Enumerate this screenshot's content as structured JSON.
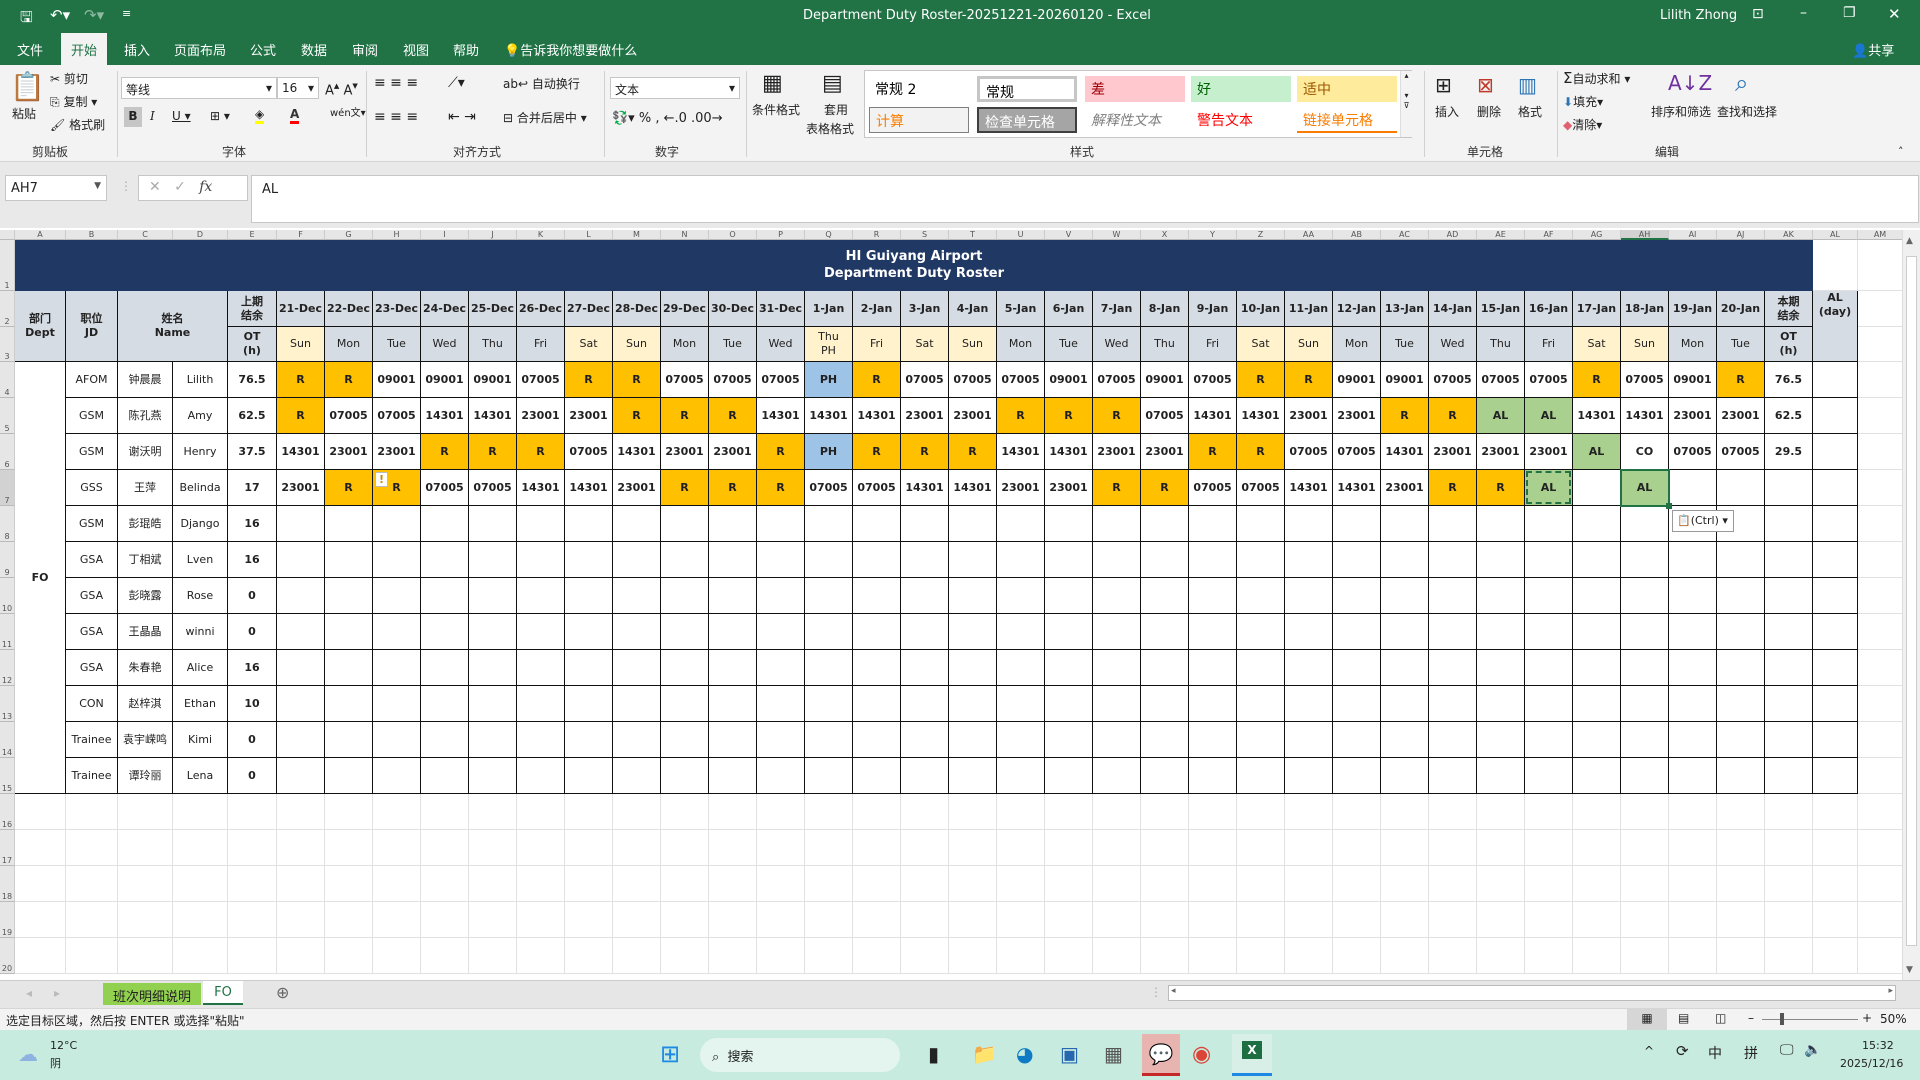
{
  "window": {
    "title": "Department Duty Roster-20251221-20260120  -  Excel",
    "user": "Lilith Zhong",
    "share": "共享"
  },
  "menu_tabs": [
    "文件",
    "开始",
    "插入",
    "页面布局",
    "公式",
    "数据",
    "审阅",
    "视图",
    "帮助"
  ],
  "tell_me": "告诉我你想要做什么",
  "ribbon": {
    "clipboard": {
      "paste": "粘贴",
      "cut": "剪切",
      "copy": "复制",
      "format_painter": "格式刷",
      "label": "剪贴板"
    },
    "font": {
      "name": "等线",
      "size": "16",
      "label": "字体"
    },
    "alignment": {
      "wrap": "自动换行",
      "merge": "合并后居中",
      "label": "对齐方式"
    },
    "number": {
      "format": "文本",
      "label": "数字"
    },
    "styles": {
      "conditional": "条件格式",
      "table_format_1": "套用",
      "table_format_2": "表格格式",
      "label": "样式",
      "gallery": [
        {
          "text": "常规 2",
          "bg": "#ffffff",
          "fg": "#000000"
        },
        {
          "text": "常规",
          "bg": "#ffffff",
          "fg": "#000000"
        },
        {
          "text": "差",
          "bg": "#ffc7ce",
          "fg": "#9c0006"
        },
        {
          "text": "好",
          "bg": "#c6efce",
          "fg": "#006100"
        },
        {
          "text": "适中",
          "bg": "#ffeb9c",
          "fg": "#9c5700"
        },
        {
          "text": "计算",
          "bg": "#f2f2f2",
          "fg": "#fa7d00"
        },
        {
          "text": "检查单元格",
          "bg": "#a5a5a5",
          "fg": "#ffffff"
        },
        {
          "text": "解释性文本",
          "bg": "#ffffff",
          "fg": "#7f7f7f"
        },
        {
          "text": "警告文本",
          "bg": "#ffffff",
          "fg": "#ff0000"
        },
        {
          "text": "链接单元格",
          "bg": "#ffffff",
          "fg": "#fa7d00"
        }
      ]
    },
    "cells": {
      "insert": "插入",
      "delete": "删除",
      "format": "格式",
      "label": "单元格"
    },
    "editing": {
      "autosum": "自动求和",
      "fill": "填充",
      "clear": "清除",
      "sort": "排序和筛选",
      "find": "查找和选择",
      "label": "编辑"
    }
  },
  "formula_bar": {
    "name_box": "AH7",
    "value": "AL"
  },
  "grid": {
    "columns": [
      "A",
      "B",
      "C",
      "D",
      "E",
      "F",
      "G",
      "H",
      "I",
      "J",
      "K",
      "L",
      "M",
      "N",
      "O",
      "P",
      "Q",
      "R",
      "S",
      "T",
      "U",
      "V",
      "W",
      "X",
      "Y",
      "Z",
      "AA",
      "AB",
      "AC",
      "AD",
      "AE",
      "AF",
      "AG",
      "AH",
      "AI",
      "AJ",
      "AK",
      "AL",
      "AM"
    ],
    "selected_column": "AH",
    "selected_row": 7
  },
  "roster": {
    "title_line1": "HI Guiyang Airport",
    "title_line2": "Department Duty Roster",
    "header": {
      "dept": "部门\nDept",
      "jd": "职位\nJD",
      "name": "姓名\nName",
      "prev_ot_top": "上期\n结余",
      "prev_ot_bottom": "OT\n(h)",
      "cur_ot_top": "本期\n结余",
      "cur_ot_bottom": "OT\n(h)",
      "al": "AL\n(day)"
    },
    "dates": [
      "21-Dec",
      "22-Dec",
      "23-Dec",
      "24-Dec",
      "25-Dec",
      "26-Dec",
      "27-Dec",
      "28-Dec",
      "29-Dec",
      "30-Dec",
      "31-Dec",
      "1-Jan",
      "2-Jan",
      "3-Jan",
      "4-Jan",
      "5-Jan",
      "6-Jan",
      "7-Jan",
      "8-Jan",
      "9-Jan",
      "10-Jan",
      "11-Jan",
      "12-Jan",
      "13-Jan",
      "14-Jan",
      "15-Jan",
      "16-Jan",
      "17-Jan",
      "18-Jan",
      "19-Jan",
      "20-Jan"
    ],
    "days": [
      "Sun",
      "Mon",
      "Tue",
      "Wed",
      "Thu",
      "Fri",
      "Sat",
      "Sun",
      "Mon",
      "Tue",
      "Wed",
      "Thu\nPH",
      "Fri",
      "Sat",
      "Sun",
      "Mon",
      "Tue",
      "Wed",
      "Thu",
      "Fri",
      "Sat",
      "Sun",
      "Mon",
      "Tue",
      "Wed",
      "Thu",
      "Fri",
      "Sat",
      "Sun",
      "Mon",
      "Tue"
    ],
    "highlight_days": [
      0,
      6,
      7,
      11,
      12,
      13,
      14,
      20,
      21,
      27,
      28
    ],
    "dept": "FO",
    "colors": {
      "navy": "#203864",
      "header": "#d6dce4",
      "weekend": "#fff2cc",
      "R": "#ffc000",
      "PH": "#9dc3e6",
      "AL": "#a9d08e"
    },
    "staff": [
      {
        "jd": "AFOM",
        "cn": "钟晨晨",
        "en": "Lilith",
        "prev_ot": "76.5",
        "shifts": [
          "R",
          "R",
          "09001",
          "09001",
          "09001",
          "07005",
          "R",
          "R",
          "07005",
          "07005",
          "07005",
          "PH",
          "R",
          "07005",
          "07005",
          "07005",
          "09001",
          "07005",
          "09001",
          "07005",
          "R",
          "R",
          "09001",
          "09001",
          "07005",
          "07005",
          "07005",
          "R",
          "07005",
          "09001",
          "R"
        ],
        "cur_ot": "76.5",
        "al": ""
      },
      {
        "jd": "GSM",
        "cn": "陈孔燕",
        "en": "Amy",
        "prev_ot": "62.5",
        "shifts": [
          "R",
          "07005",
          "07005",
          "14301",
          "14301",
          "23001",
          "23001",
          "R",
          "R",
          "R",
          "14301",
          "14301",
          "14301",
          "23001",
          "23001",
          "R",
          "R",
          "R",
          "07005",
          "14301",
          "14301",
          "23001",
          "23001",
          "R",
          "R",
          "AL",
          "AL",
          "14301",
          "14301",
          "23001",
          "23001"
        ],
        "cur_ot": "62.5",
        "al": ""
      },
      {
        "jd": "GSM",
        "cn": "谢沃明",
        "en": "Henry",
        "prev_ot": "37.5",
        "shifts": [
          "14301",
          "23001",
          "23001",
          "R",
          "R",
          "R",
          "07005",
          "14301",
          "23001",
          "23001",
          "R",
          "PH",
          "R",
          "R",
          "R",
          "14301",
          "14301",
          "23001",
          "23001",
          "R",
          "R",
          "07005",
          "07005",
          "14301",
          "23001",
          "23001",
          "23001",
          "AL",
          "CO",
          "07005",
          "07005"
        ],
        "cur_ot": "29.5",
        "al": ""
      },
      {
        "jd": "GSS",
        "cn": "王萍",
        "en": "Belinda",
        "prev_ot": "17",
        "shifts": [
          "23001",
          "R",
          "R",
          "07005",
          "07005",
          "14301",
          "14301",
          "23001",
          "R",
          "R",
          "R",
          "07005",
          "07005",
          "14301",
          "14301",
          "23001",
          "23001",
          "R",
          "R",
          "07005",
          "07005",
          "14301",
          "14301",
          "23001",
          "R",
          "R",
          "AL",
          "",
          "AL",
          "",
          ""
        ],
        "cur_ot": "",
        "al": ""
      },
      {
        "jd": "GSM",
        "cn": "彭琨皓",
        "en": "Django",
        "prev_ot": "16",
        "shifts": [],
        "cur_ot": "",
        "al": ""
      },
      {
        "jd": "GSA",
        "cn": "丁相斌",
        "en": "Lven",
        "prev_ot": "16",
        "shifts": [],
        "cur_ot": "",
        "al": ""
      },
      {
        "jd": "GSA",
        "cn": "彭晓露",
        "en": "Rose",
        "prev_ot": "0",
        "shifts": [],
        "cur_ot": "",
        "al": ""
      },
      {
        "jd": "GSA",
        "cn": "王晶晶",
        "en": "winni",
        "prev_ot": "0",
        "shifts": [],
        "cur_ot": "",
        "al": ""
      },
      {
        "jd": "GSA",
        "cn": "朱春艳",
        "en": "Alice",
        "prev_ot": "16",
        "shifts": [],
        "cur_ot": "",
        "al": ""
      },
      {
        "jd": "CON",
        "cn": "赵梓淇",
        "en": "Ethan",
        "prev_ot": "10",
        "shifts": [],
        "cur_ot": "",
        "al": ""
      },
      {
        "jd": "Trainee",
        "cn": "袁宇嵘鸣",
        "en": "Kimi",
        "prev_ot": "0",
        "shifts": [],
        "cur_ot": "",
        "al": ""
      },
      {
        "jd": "Trainee",
        "cn": "谭玲丽",
        "en": "Lena",
        "prev_ot": "0",
        "shifts": [],
        "cur_ot": "",
        "al": ""
      }
    ]
  },
  "paste_options": "(Ctrl)",
  "sheet_tabs": [
    {
      "label": "班次明细说明",
      "color": "#92d050"
    },
    {
      "label": "FO",
      "active": true
    }
  ],
  "status": {
    "message": "选定目标区域，然后按 ENTER 或选择\"粘贴\"",
    "zoom": "50%"
  },
  "taskbar": {
    "weather_temp": "12°C",
    "weather_desc": "阴",
    "search": "搜索",
    "time": "15:32",
    "date": "2025/12/16",
    "ime1": "中",
    "ime2": "拼"
  }
}
